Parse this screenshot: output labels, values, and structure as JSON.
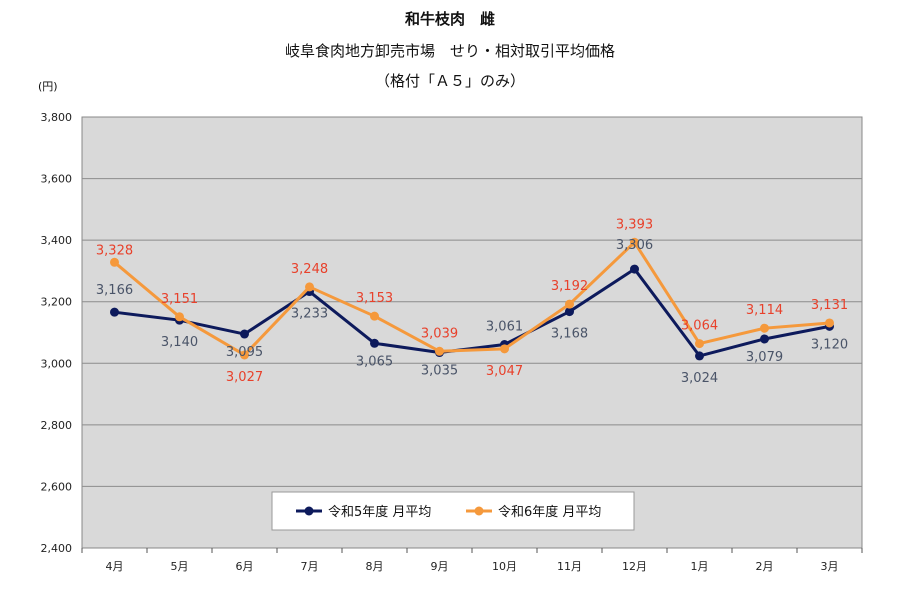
{
  "chart_data": {
    "type": "line",
    "title": "和牛枝肉　雌",
    "subtitle": "岐阜食肉地方卸売市場　せり・相対取引平均価格",
    "subtitle2": "（格付「Ａ５」のみ）",
    "ylabel": "(円)",
    "ylim": [
      2400,
      3800
    ],
    "yticks": [
      "2,400",
      "2,600",
      "2,800",
      "3,000",
      "3,200",
      "3,400",
      "3,600",
      "3,800"
    ],
    "categories": [
      "4月",
      "5月",
      "6月",
      "7月",
      "8月",
      "9月",
      "10月",
      "11月",
      "12月",
      "1月",
      "2月",
      "3月"
    ],
    "grid": true,
    "legend_position": "bottom-center",
    "series": [
      {
        "name": "令和5年度 月平均",
        "color": "#0d1a5c",
        "label_color": "#4a5468",
        "values": [
          3166,
          3140,
          3095,
          3233,
          3065,
          3035,
          3061,
          3168,
          3306,
          3024,
          3079,
          3120
        ],
        "labels": [
          "3,166",
          "3,140",
          "3,095",
          "3,233",
          "3,065",
          "3,035",
          "3,061",
          "3,168",
          "3,306",
          "3,024",
          "3,079",
          "3,120"
        ]
      },
      {
        "name": "令和6年度 月平均",
        "color": "#f5993c",
        "label_color": "#e8412b",
        "values": [
          3328,
          3151,
          3027,
          3248,
          3153,
          3039,
          3047,
          3192,
          3393,
          3064,
          3114,
          3131
        ],
        "labels": [
          "3,328",
          "3,151",
          "3,027",
          "3,248",
          "3,153",
          "3,039",
          "3,047",
          "3,192",
          "3,393",
          "3,064",
          "3,114",
          "3,131"
        ]
      }
    ]
  }
}
